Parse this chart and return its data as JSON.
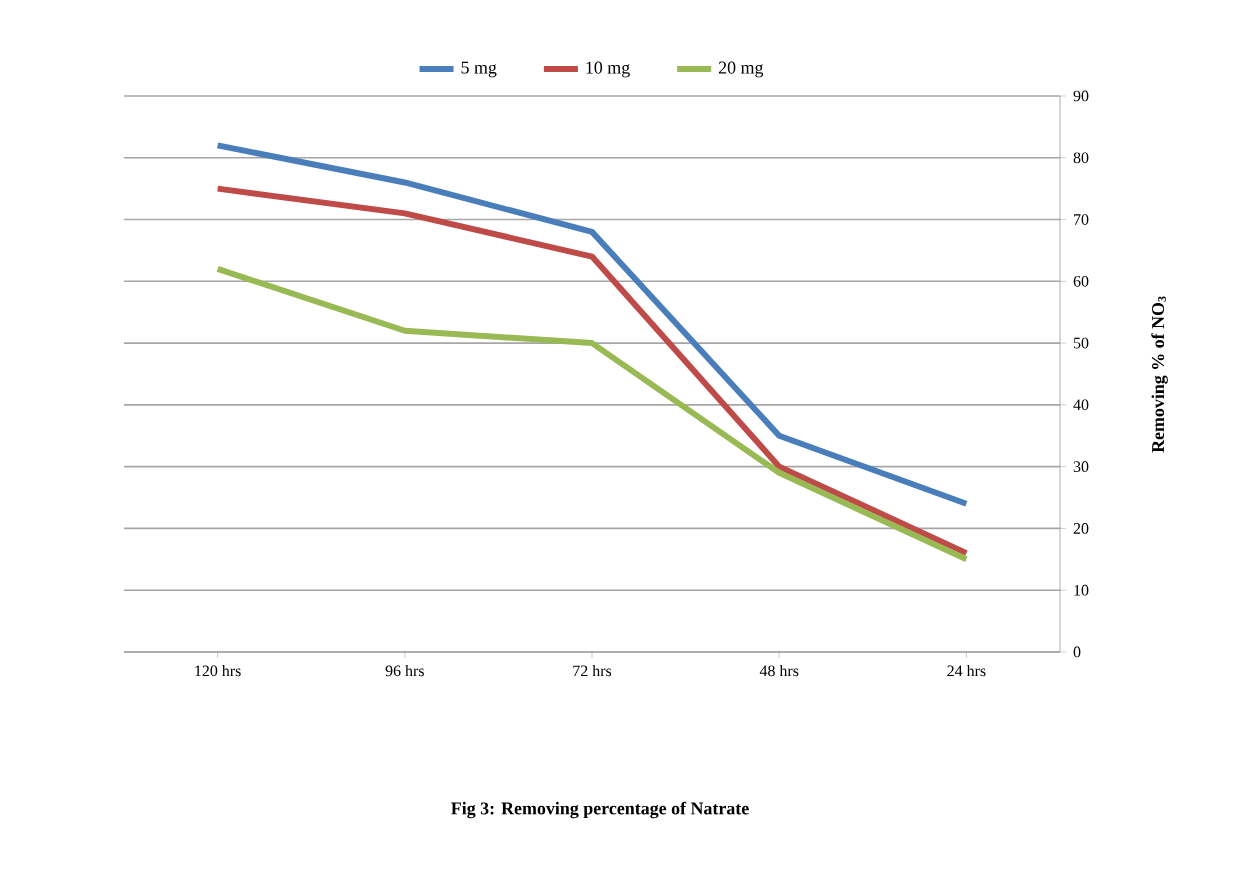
{
  "chart_data": {
    "type": "line",
    "title": "Fig 3: Removing percentage of Natrate",
    "ylabel": "Removing % of NO$_{3}$",
    "categories": [
      "120 hrs",
      "96 hrs",
      "72 hrs",
      "48 hrs",
      "24 hrs"
    ],
    "series": [
      {
        "name": "5 mg",
        "color": "#4a7ebb",
        "values": [
          82,
          76,
          68,
          35,
          24
        ]
      },
      {
        "name": "10 mg",
        "color": "#be4b48",
        "values": [
          75,
          71,
          64,
          30,
          16
        ]
      },
      {
        "name": "20 mg",
        "color": "#98b954",
        "values": [
          62,
          52,
          50,
          29,
          15
        ]
      }
    ],
    "ylim": [
      0,
      90
    ],
    "yticks": [
      0,
      10,
      20,
      30,
      40,
      50,
      60,
      70,
      80,
      90
    ],
    "grid": "y",
    "legend": "top",
    "marker": "none",
    "line_style": "solid"
  }
}
